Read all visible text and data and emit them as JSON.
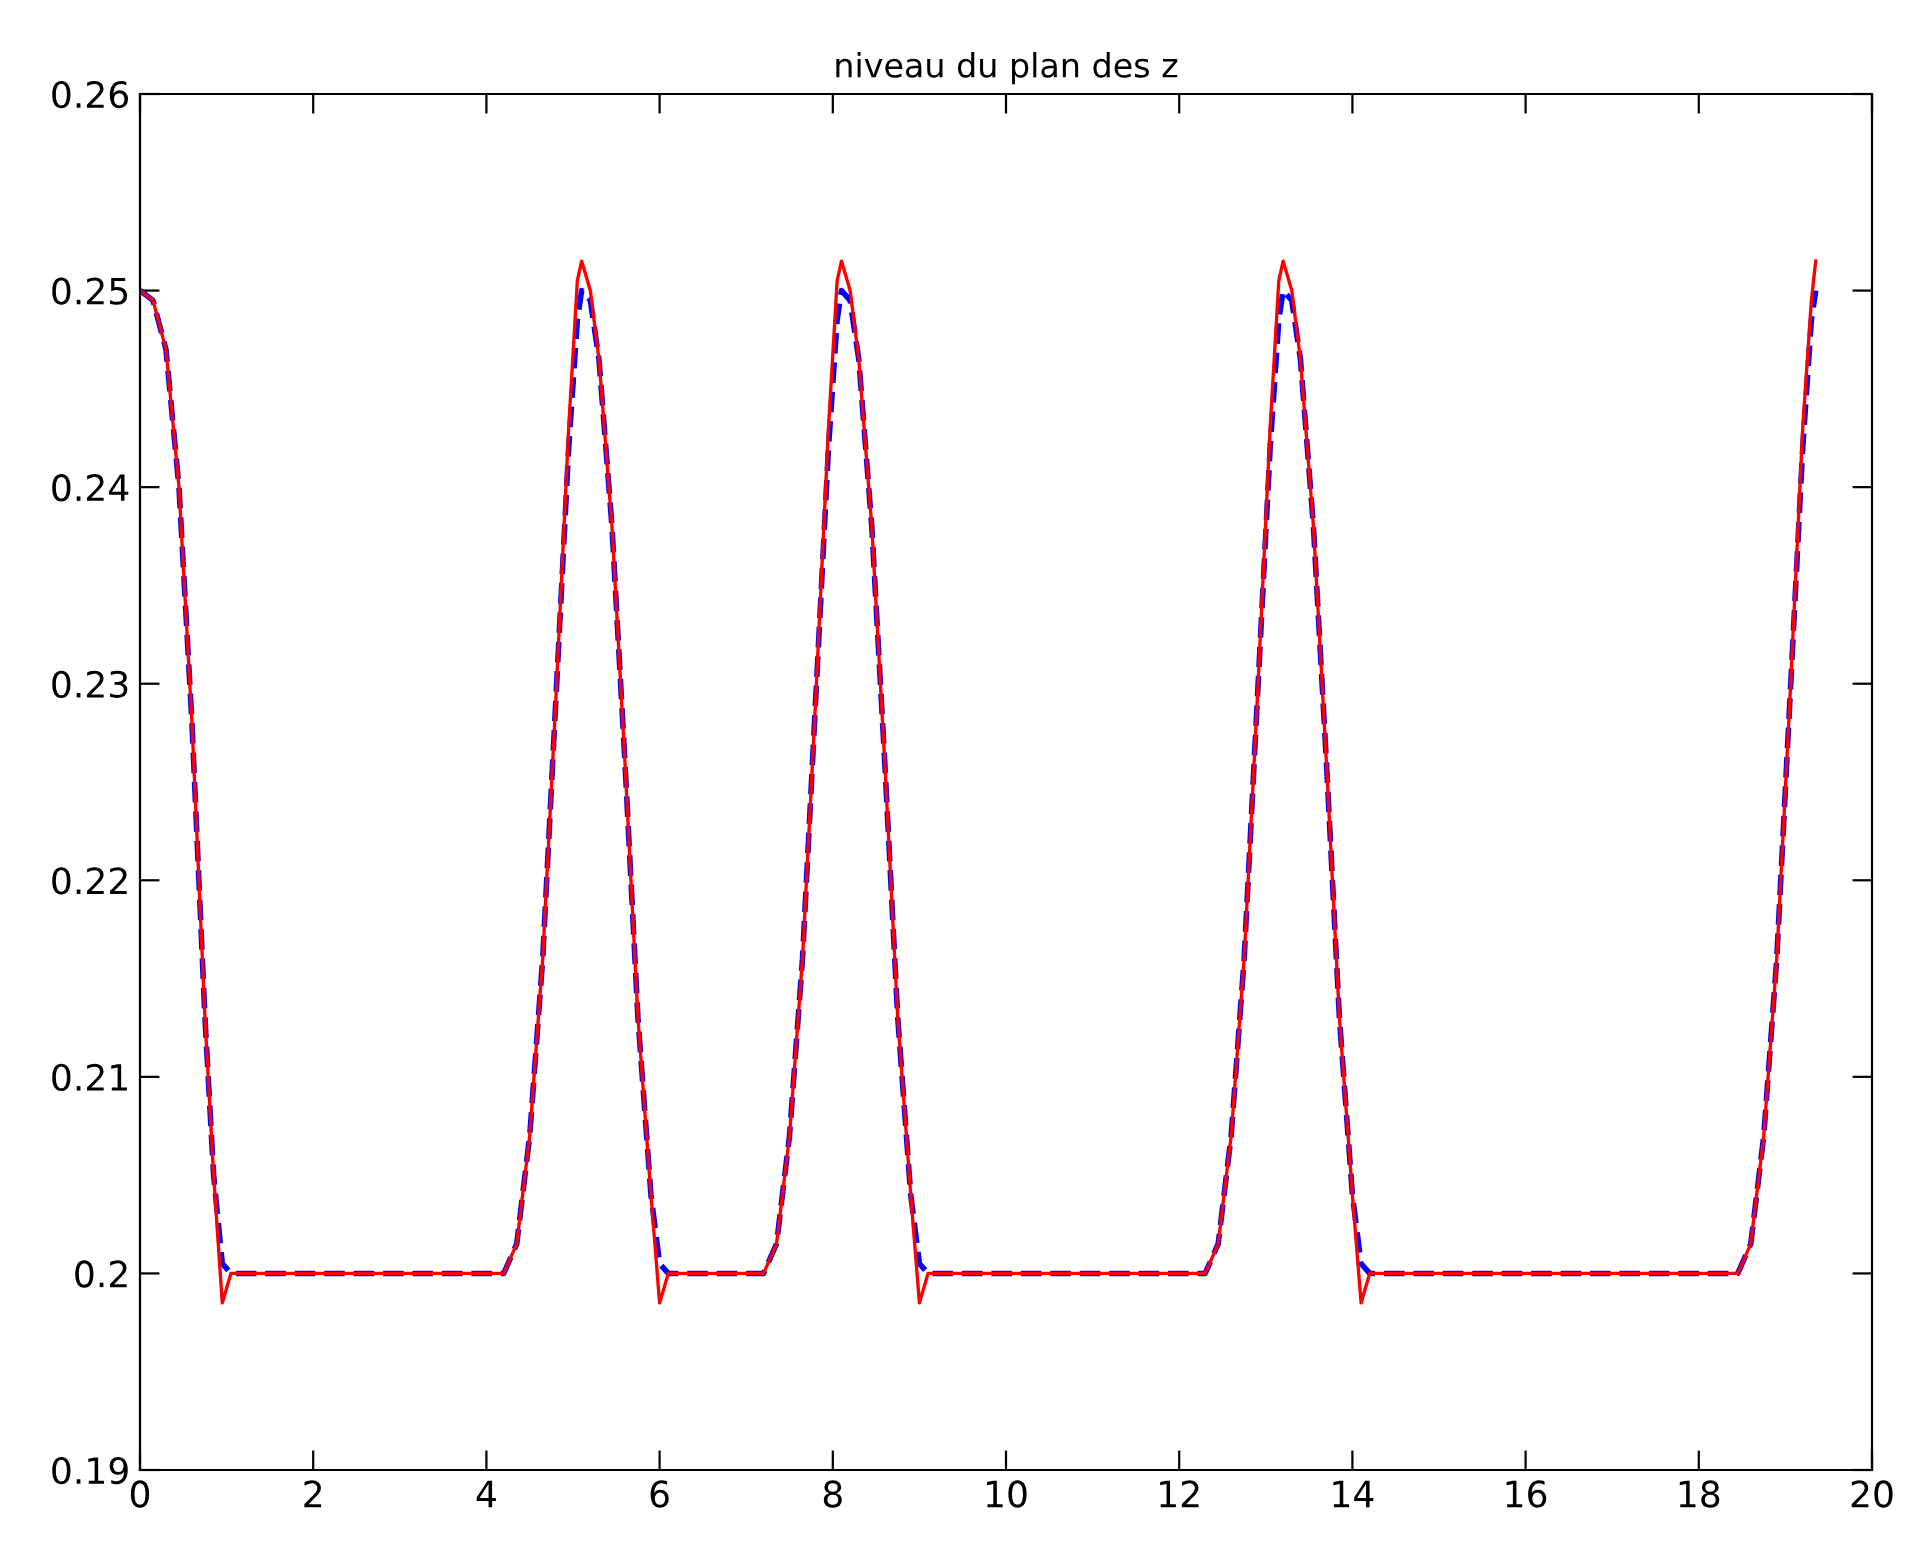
{
  "chart_data": {
    "type": "line",
    "title": "niveau du plan des z",
    "xlim": [
      0,
      20
    ],
    "xticks": [
      0,
      2,
      4,
      6,
      8,
      10,
      12,
      14,
      16,
      18,
      20
    ],
    "ylim": [
      0.19,
      0.26
    ],
    "yticks": [
      0.19,
      0.2,
      0.21,
      0.22,
      0.23,
      0.24,
      0.25,
      0.26
    ],
    "grid": false,
    "legend": false,
    "series": [
      {
        "color": "#0000ff",
        "line_style": "dashed",
        "x": [
          0,
          0.15,
          0.3,
          0.45,
          0.6,
          0.75,
          0.85,
          0.95,
          1.05,
          4.2,
          4.35,
          4.5,
          4.65,
          4.8,
          4.95,
          5.05,
          5.1,
          5.2,
          5.3,
          5.45,
          5.6,
          5.75,
          5.9,
          6.0,
          6.1,
          7.2,
          7.35,
          7.5,
          7.65,
          7.8,
          7.95,
          8.05,
          8.1,
          8.2,
          8.3,
          8.45,
          8.6,
          8.75,
          8.9,
          9.0,
          9.1,
          12.3,
          12.45,
          12.6,
          12.75,
          12.9,
          13.05,
          13.15,
          13.2,
          13.3,
          13.4,
          13.55,
          13.7,
          13.85,
          14.0,
          14.1,
          14.2,
          18.45,
          18.6,
          18.75,
          18.9,
          19.05,
          19.2,
          19.3,
          19.35
        ],
        "values": [
          0.25,
          0.2495,
          0.247,
          0.24,
          0.228,
          0.213,
          0.205,
          0.2005,
          0.2,
          0.2,
          0.2015,
          0.207,
          0.216,
          0.229,
          0.242,
          0.2485,
          0.25,
          0.2495,
          0.2465,
          0.238,
          0.226,
          0.213,
          0.204,
          0.2005,
          0.2,
          0.2,
          0.2015,
          0.207,
          0.216,
          0.229,
          0.242,
          0.2485,
          0.25,
          0.2495,
          0.2465,
          0.238,
          0.226,
          0.213,
          0.204,
          0.2005,
          0.2,
          0.2,
          0.2015,
          0.207,
          0.216,
          0.229,
          0.242,
          0.2485,
          0.25,
          0.2495,
          0.2465,
          0.238,
          0.226,
          0.213,
          0.204,
          0.2005,
          0.2,
          0.2,
          0.2015,
          0.207,
          0.216,
          0.229,
          0.242,
          0.2485,
          0.25
        ]
      },
      {
        "color": "#ff0000",
        "line_style": "solid",
        "x": [
          0,
          0.15,
          0.3,
          0.45,
          0.6,
          0.75,
          0.85,
          0.95,
          1.05,
          4.2,
          4.35,
          4.5,
          4.65,
          4.8,
          4.95,
          5.05,
          5.1,
          5.2,
          5.3,
          5.45,
          5.6,
          5.75,
          5.9,
          6.0,
          6.1,
          7.2,
          7.35,
          7.5,
          7.65,
          7.8,
          7.95,
          8.05,
          8.1,
          8.2,
          8.3,
          8.45,
          8.6,
          8.75,
          8.9,
          9.0,
          9.1,
          12.3,
          12.45,
          12.6,
          12.75,
          12.9,
          13.05,
          13.15,
          13.2,
          13.3,
          13.4,
          13.55,
          13.7,
          13.85,
          14.0,
          14.1,
          14.2,
          18.45,
          18.6,
          18.75,
          18.9,
          19.05,
          19.2,
          19.3,
          19.35
        ],
        "values": [
          0.25,
          0.2495,
          0.247,
          0.24,
          0.228,
          0.213,
          0.205,
          0.1985,
          0.2,
          0.2,
          0.2015,
          0.207,
          0.216,
          0.229,
          0.243,
          0.2505,
          0.2515,
          0.25,
          0.2465,
          0.238,
          0.226,
          0.213,
          0.204,
          0.1985,
          0.2,
          0.2,
          0.2015,
          0.207,
          0.216,
          0.229,
          0.243,
          0.2505,
          0.2515,
          0.25,
          0.2465,
          0.238,
          0.226,
          0.213,
          0.204,
          0.1985,
          0.2,
          0.2,
          0.2015,
          0.207,
          0.216,
          0.229,
          0.243,
          0.2505,
          0.2515,
          0.25,
          0.2465,
          0.238,
          0.226,
          0.213,
          0.204,
          0.1985,
          0.2,
          0.2,
          0.2015,
          0.207,
          0.216,
          0.229,
          0.243,
          0.2495,
          0.2515
        ]
      }
    ]
  }
}
